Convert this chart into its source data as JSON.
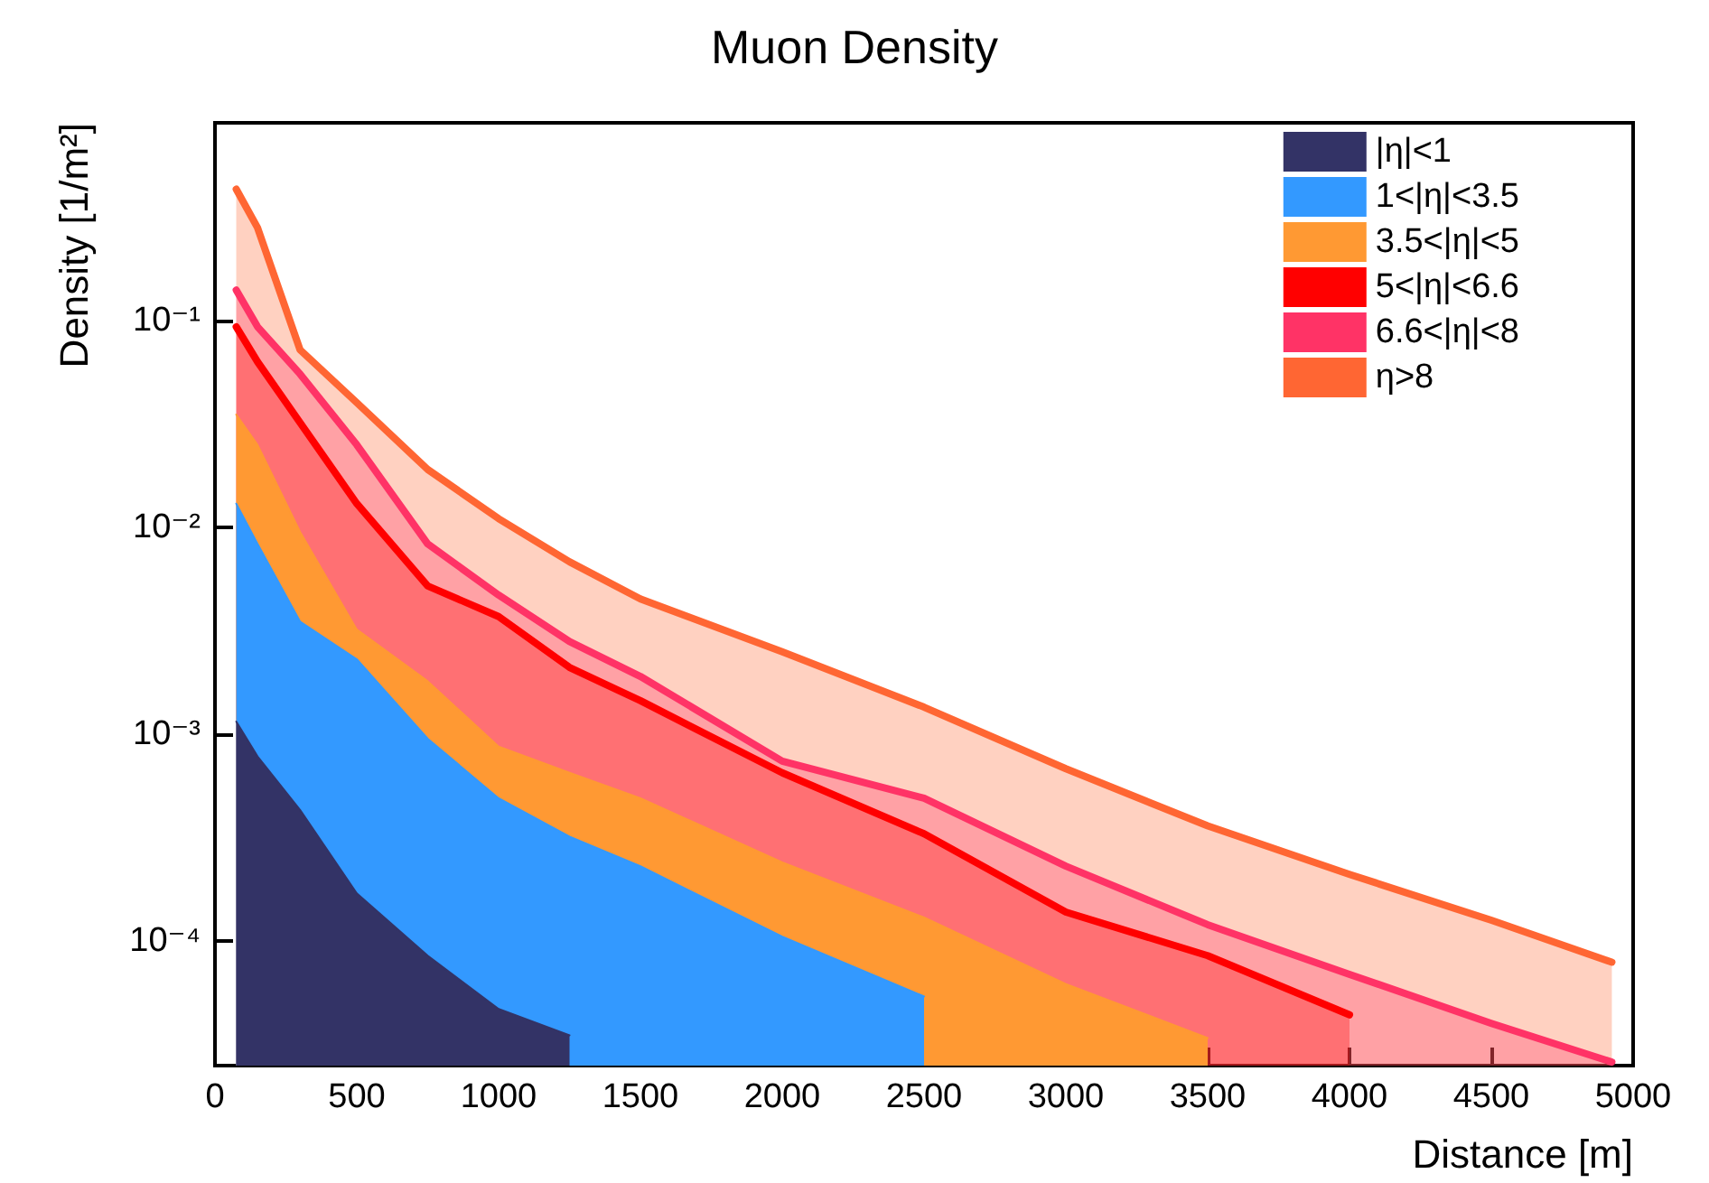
{
  "chart_data": {
    "type": "area",
    "title": "Muon Density",
    "xlabel": "Distance [m]",
    "ylabel": "Density [1/m²]",
    "x": [
      75,
      150,
      300,
      500,
      750,
      1000,
      1250,
      1500,
      2000,
      2500,
      3000,
      3500,
      4000,
      4500,
      4925
    ],
    "series": [
      {
        "name": "|η|<1",
        "color": "#333366",
        "values": [
          0.00115,
          0.00078,
          0.00043,
          0.00017,
          8.5e-05,
          4.7e-05,
          3.5e-05,
          null,
          null,
          null,
          null,
          null,
          null,
          null,
          null
        ]
      },
      {
        "name": "1<|η|<3.5",
        "color": "#3399ff",
        "values": [
          0.013,
          0.0083,
          0.0035,
          0.0023,
          0.00095,
          0.00049,
          0.00032,
          0.00023,
          0.000105,
          5.4e-05,
          null,
          null,
          null,
          null,
          null
        ]
      },
      {
        "name": "3.5<|η|<5",
        "color": "#ff9933",
        "values": [
          0.035,
          0.025,
          0.0095,
          0.0032,
          0.0018,
          0.00087,
          0.00065,
          0.00049,
          0.00024,
          0.00013,
          6.2e-05,
          3.4e-05,
          null,
          null,
          null
        ]
      },
      {
        "name": "5<|η|<6.6",
        "color": "#ff0000",
        "values": [
          0.093,
          0.063,
          0.032,
          0.013,
          0.0052,
          0.0037,
          0.0021,
          0.00145,
          0.00065,
          0.00033,
          0.000138,
          8.5e-05,
          4.4e-05,
          null,
          null
        ]
      },
      {
        "name": "6.6<|η|<8",
        "color": "#ff3366",
        "values": [
          0.14,
          0.093,
          0.055,
          0.025,
          0.0083,
          0.0047,
          0.0028,
          0.0019,
          0.00074,
          0.00049,
          0.00023,
          0.00012,
          6.9e-05,
          4e-05,
          2.6e-05
        ]
      },
      {
        "name": "η>8",
        "color": "#ff6633",
        "values": [
          0.43,
          0.28,
          0.072,
          0.04,
          0.019,
          0.011,
          0.0068,
          0.0045,
          0.0025,
          0.00135,
          0.00068,
          0.00036,
          0.00021,
          0.000126,
          7.9e-05
        ]
      }
    ],
    "xlim": [
      0,
      5000
    ],
    "xticks": [
      0,
      500,
      1000,
      1500,
      2000,
      2500,
      3000,
      3500,
      4000,
      4500,
      5000
    ],
    "ylim": [
      2.5e-05,
      0.9
    ],
    "yticks": [
      {
        "value": 0.0001,
        "label": "10⁻⁴"
      },
      {
        "value": 0.001,
        "label": "10⁻³"
      },
      {
        "value": 0.01,
        "label": "10⁻²"
      },
      {
        "value": 0.1,
        "label": "10⁻¹"
      }
    ],
    "log": "y",
    "legend": "top right"
  }
}
